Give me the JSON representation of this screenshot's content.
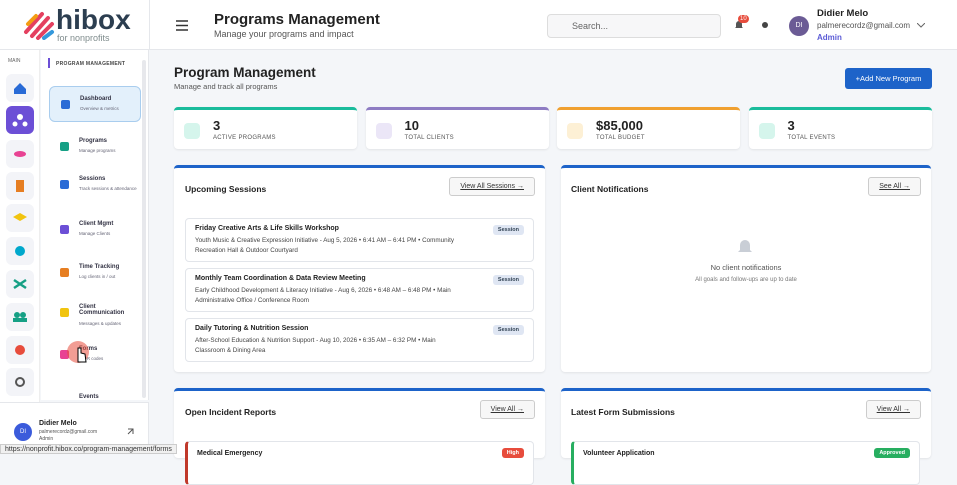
{
  "logo": {
    "name": "hibox",
    "tagline": "for nonprofits"
  },
  "header": {
    "title": "Programs Management",
    "subtitle": "Manage your programs and impact",
    "search_placeholder": "Search...",
    "notification_count": "10",
    "user": {
      "initials": "DI",
      "name": "Didier Melo",
      "email": "palmerecordz@gmail.com",
      "role": "Admin"
    }
  },
  "sidebar": {
    "rail_label": "MAIN",
    "section": "PROGRAM MANAGEMENT",
    "items": [
      {
        "label": "Dashboard",
        "desc": "Overview & metrics"
      },
      {
        "label": "Programs",
        "desc": "Manage programs"
      },
      {
        "label": "Sessions",
        "desc": "Track sessions & attendance"
      },
      {
        "label": "Client Mgmt",
        "desc": "Manage Clients"
      },
      {
        "label": "Time Tracking",
        "desc": "Log clients in / out"
      },
      {
        "label": "Client Communication",
        "desc": "Messages & updates"
      },
      {
        "label": "Forms",
        "desc": "& QR codes"
      },
      {
        "label": "Events"
      }
    ],
    "user": {
      "initials": "DI",
      "name": "Didier Melo",
      "email": "palmerecordz@gmail.com",
      "role": "Admin"
    }
  },
  "page": {
    "title": "Program Management",
    "subtitle": "Manage and track all programs",
    "add_button": "+Add New Program"
  },
  "stats": [
    {
      "value": "3",
      "label": "ACTIVE PROGRAMS"
    },
    {
      "value": "10",
      "label": "TOTAL CLIENTS"
    },
    {
      "value": "$85,000",
      "label": "TOTAL BUDGET"
    },
    {
      "value": "3",
      "label": "TOTAL EVENTS"
    }
  ],
  "sessions_panel": {
    "title": "Upcoming Sessions",
    "link": "View All Sessions →",
    "items": [
      {
        "title": "Friday Creative Arts & Life Skills Workshop",
        "details": "Youth Music & Creative Expression Initiative - Aug 5, 2026 • 6:41 AM – 6:41 PM • Community Recreation Hall & Outdoor Courtyard",
        "badge": "Session"
      },
      {
        "title": "Monthly Team Coordination & Data Review Meeting",
        "details": "Early Childhood Development & Literacy Initiative - Aug 6, 2026 • 6:48 AM – 6:48 PM • Main Administrative Office / Conference Room",
        "badge": "Session"
      },
      {
        "title": "Daily Tutoring & Nutrition Session",
        "details": "After-School Education & Nutrition Support - Aug 10, 2026 • 6:35 AM – 6:32 PM • Main Classroom & Dining Area",
        "badge": "Session"
      }
    ]
  },
  "notifications_panel": {
    "title": "Client Notifications",
    "link": "See All →",
    "empty_title": "No client notifications",
    "empty_text": "All goals and follow-ups are up to date"
  },
  "incidents_panel": {
    "title": "Open Incident Reports",
    "link": "View All →",
    "items": [
      {
        "title": "Medical Emergency",
        "badge": "High"
      }
    ]
  },
  "forms_panel": {
    "title": "Latest Form Submissions",
    "link": "View All →",
    "items": [
      {
        "title": "Volunteer Application",
        "badge": "Approved"
      }
    ]
  },
  "status_bar": "https://nonprofit.hibox.co/program-management/forms"
}
